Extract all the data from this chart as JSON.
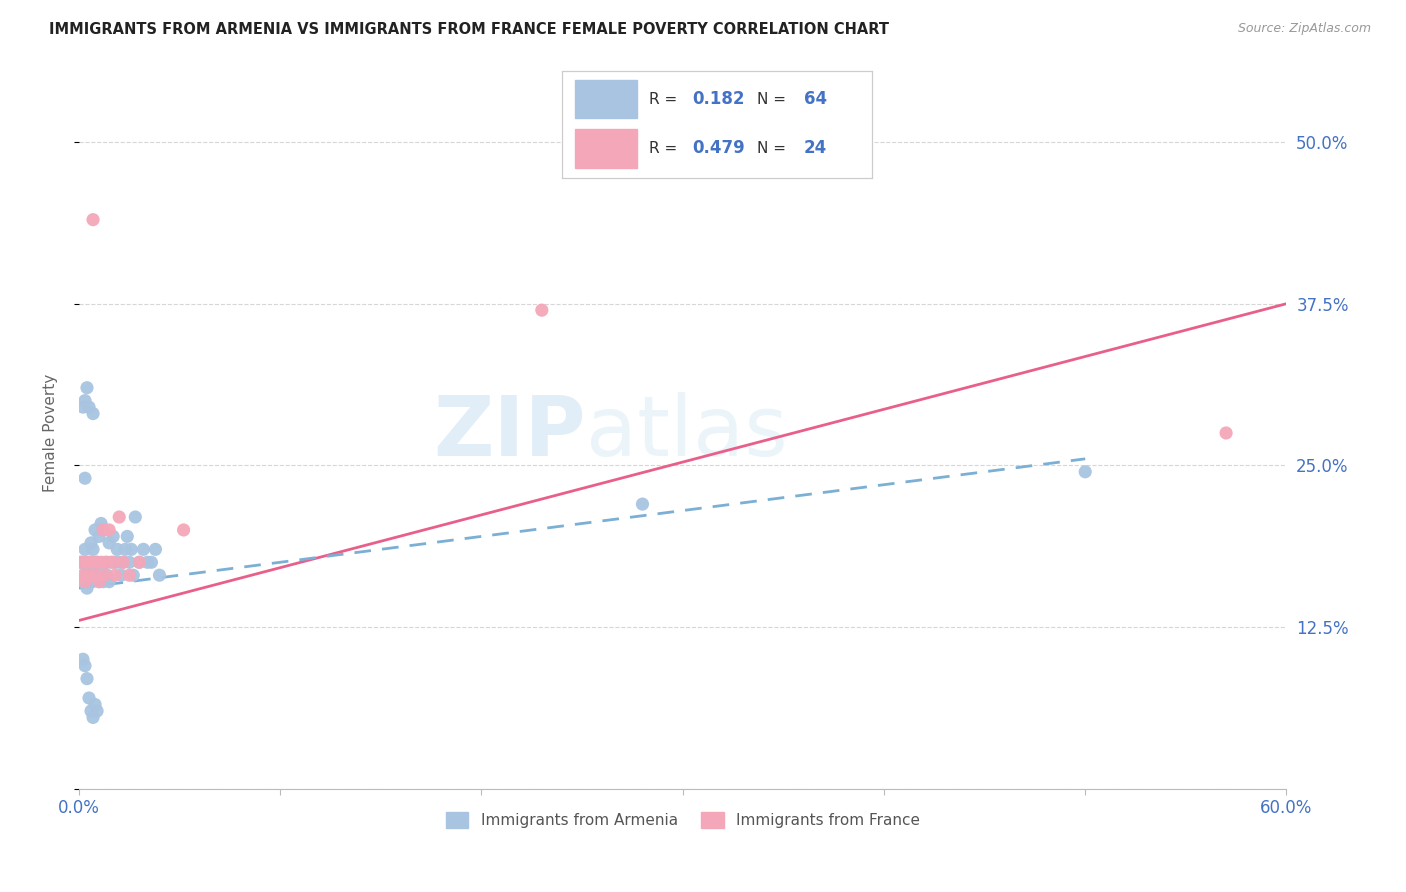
{
  "title": "IMMIGRANTS FROM ARMENIA VS IMMIGRANTS FROM FRANCE FEMALE POVERTY CORRELATION CHART",
  "source": "Source: ZipAtlas.com",
  "ylabel": "Female Poverty",
  "xlim": [
    0.0,
    0.6
  ],
  "ylim": [
    0.0,
    0.55
  ],
  "xticks": [
    0.0,
    0.1,
    0.2,
    0.3,
    0.4,
    0.5,
    0.6
  ],
  "xticklabels": [
    "0.0%",
    "",
    "",
    "",
    "",
    "",
    "60.0%"
  ],
  "yticks": [
    0.0,
    0.125,
    0.25,
    0.375,
    0.5
  ],
  "yticklabels": [
    "",
    "12.5%",
    "25.0%",
    "37.5%",
    "50.0%"
  ],
  "armenia_color": "#a8c4e0",
  "france_color": "#f4a7b9",
  "armenia_R": 0.182,
  "armenia_N": 64,
  "france_R": 0.479,
  "france_N": 24,
  "trendline_armenia_color": "#7bafd4",
  "trendline_france_color": "#e8608a",
  "watermark1": "ZIP",
  "watermark2": "atlas",
  "armenia_x": [
    0.001,
    0.002,
    0.002,
    0.002,
    0.003,
    0.003,
    0.003,
    0.003,
    0.004,
    0.004,
    0.004,
    0.005,
    0.005,
    0.005,
    0.006,
    0.006,
    0.006,
    0.007,
    0.007,
    0.007,
    0.008,
    0.008,
    0.009,
    0.009,
    0.01,
    0.01,
    0.011,
    0.011,
    0.012,
    0.012,
    0.013,
    0.014,
    0.015,
    0.015,
    0.016,
    0.017,
    0.018,
    0.019,
    0.02,
    0.021,
    0.022,
    0.023,
    0.024,
    0.025,
    0.026,
    0.027,
    0.028,
    0.03,
    0.032,
    0.034,
    0.036,
    0.038,
    0.04,
    0.002,
    0.003,
    0.004,
    0.005,
    0.006,
    0.007,
    0.008,
    0.009,
    0.28,
    0.5,
    0.003
  ],
  "armenia_y": [
    0.175,
    0.16,
    0.175,
    0.295,
    0.165,
    0.175,
    0.185,
    0.3,
    0.155,
    0.17,
    0.31,
    0.165,
    0.175,
    0.295,
    0.16,
    0.175,
    0.19,
    0.17,
    0.185,
    0.29,
    0.175,
    0.2,
    0.165,
    0.175,
    0.16,
    0.195,
    0.17,
    0.205,
    0.16,
    0.2,
    0.175,
    0.165,
    0.16,
    0.19,
    0.175,
    0.195,
    0.175,
    0.185,
    0.175,
    0.165,
    0.175,
    0.185,
    0.195,
    0.175,
    0.185,
    0.165,
    0.21,
    0.175,
    0.185,
    0.175,
    0.175,
    0.185,
    0.165,
    0.1,
    0.095,
    0.085,
    0.07,
    0.06,
    0.055,
    0.065,
    0.06,
    0.22,
    0.245,
    0.24
  ],
  "france_x": [
    0.001,
    0.002,
    0.003,
    0.004,
    0.005,
    0.006,
    0.007,
    0.008,
    0.009,
    0.01,
    0.011,
    0.012,
    0.013,
    0.014,
    0.015,
    0.017,
    0.018,
    0.02,
    0.022,
    0.025,
    0.03,
    0.052,
    0.23,
    0.57
  ],
  "france_y": [
    0.175,
    0.165,
    0.16,
    0.175,
    0.165,
    0.175,
    0.44,
    0.165,
    0.175,
    0.16,
    0.175,
    0.2,
    0.165,
    0.175,
    0.2,
    0.175,
    0.165,
    0.21,
    0.175,
    0.165,
    0.175,
    0.2,
    0.37,
    0.275
  ],
  "france_trendline_x": [
    0.0,
    0.6
  ],
  "france_trendline_y": [
    0.13,
    0.375
  ],
  "armenia_trendline_x": [
    0.0,
    0.5
  ],
  "armenia_trendline_y": [
    0.155,
    0.255
  ]
}
